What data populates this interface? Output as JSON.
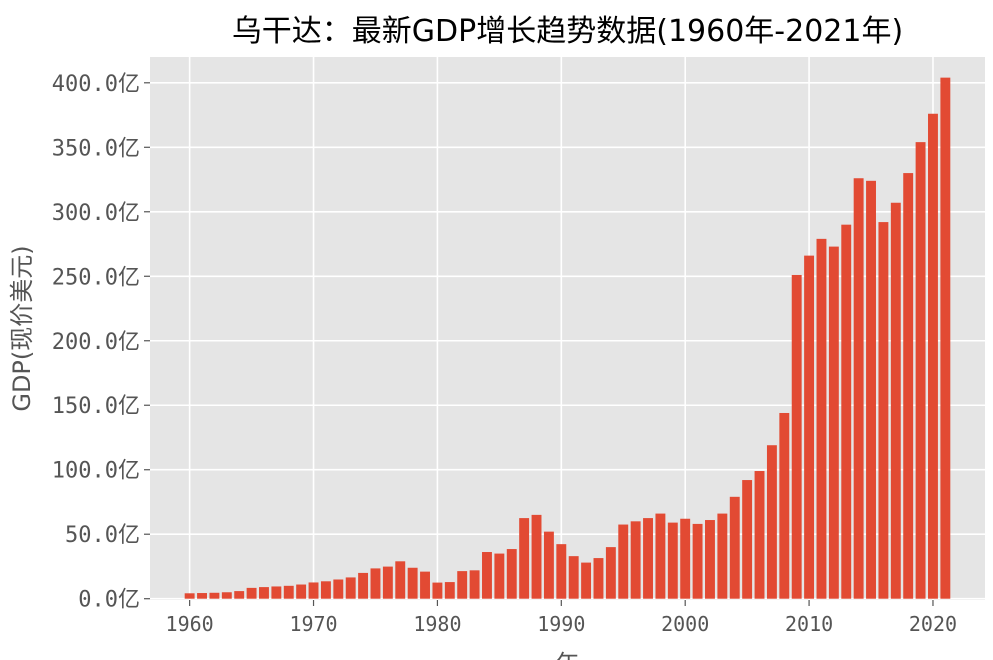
{
  "chart_data": {
    "type": "bar",
    "title": "乌干达：最新GDP增长趋势数据(1960年-2021年)",
    "xlabel": "年",
    "ylabel": "GDP(现价美元)",
    "x_ticks": [
      "1960",
      "1970",
      "1980",
      "1990",
      "2000",
      "2010",
      "2020"
    ],
    "y_ticks": [
      "0.0亿",
      "50.0亿",
      "100.0亿",
      "150.0亿",
      "200.0亿",
      "250.0亿",
      "300.0亿",
      "350.0亿",
      "400.0亿"
    ],
    "y_unit": "亿美元",
    "xlim": [
      1956.8,
      2024.2
    ],
    "ylim": [
      -1,
      420
    ],
    "grid": true,
    "bar_color": "#E24A33",
    "background_color": "#E5E5E5",
    "x": [
      1960,
      1961,
      1962,
      1963,
      1964,
      1965,
      1966,
      1967,
      1968,
      1969,
      1970,
      1971,
      1972,
      1973,
      1974,
      1975,
      1976,
      1977,
      1978,
      1979,
      1980,
      1981,
      1982,
      1983,
      1984,
      1985,
      1986,
      1987,
      1988,
      1989,
      1990,
      1991,
      1992,
      1993,
      1994,
      1995,
      1996,
      1997,
      1998,
      1999,
      2000,
      2001,
      2002,
      2003,
      2004,
      2005,
      2006,
      2007,
      2008,
      2009,
      2010,
      2011,
      2012,
      2013,
      2014,
      2015,
      2016,
      2017,
      2018,
      2019,
      2020,
      2021
    ],
    "values": [
      4.2,
      4.4,
      4.6,
      5.0,
      5.9,
      8.4,
      9.0,
      9.5,
      10.0,
      11.0,
      12.6,
      13.5,
      14.9,
      16.5,
      20.0,
      23.5,
      24.9,
      29.0,
      24.0,
      21.0,
      12.5,
      12.9,
      21.4,
      22.0,
      36.2,
      35.0,
      38.5,
      62.5,
      65.0,
      52.0,
      42.3,
      33.0,
      28.0,
      31.5,
      40.0,
      57.5,
      60.0,
      62.5,
      66.0,
      59.0,
      62.0,
      58.0,
      61.0,
      66.0,
      79.0,
      92.0,
      99.0,
      119.0,
      144.0,
      251.0,
      266.0,
      279.0,
      273.0,
      290.0,
      326.0,
      324.0,
      292.0,
      307.0,
      330.0,
      354.0,
      376.0,
      404.0
    ]
  }
}
